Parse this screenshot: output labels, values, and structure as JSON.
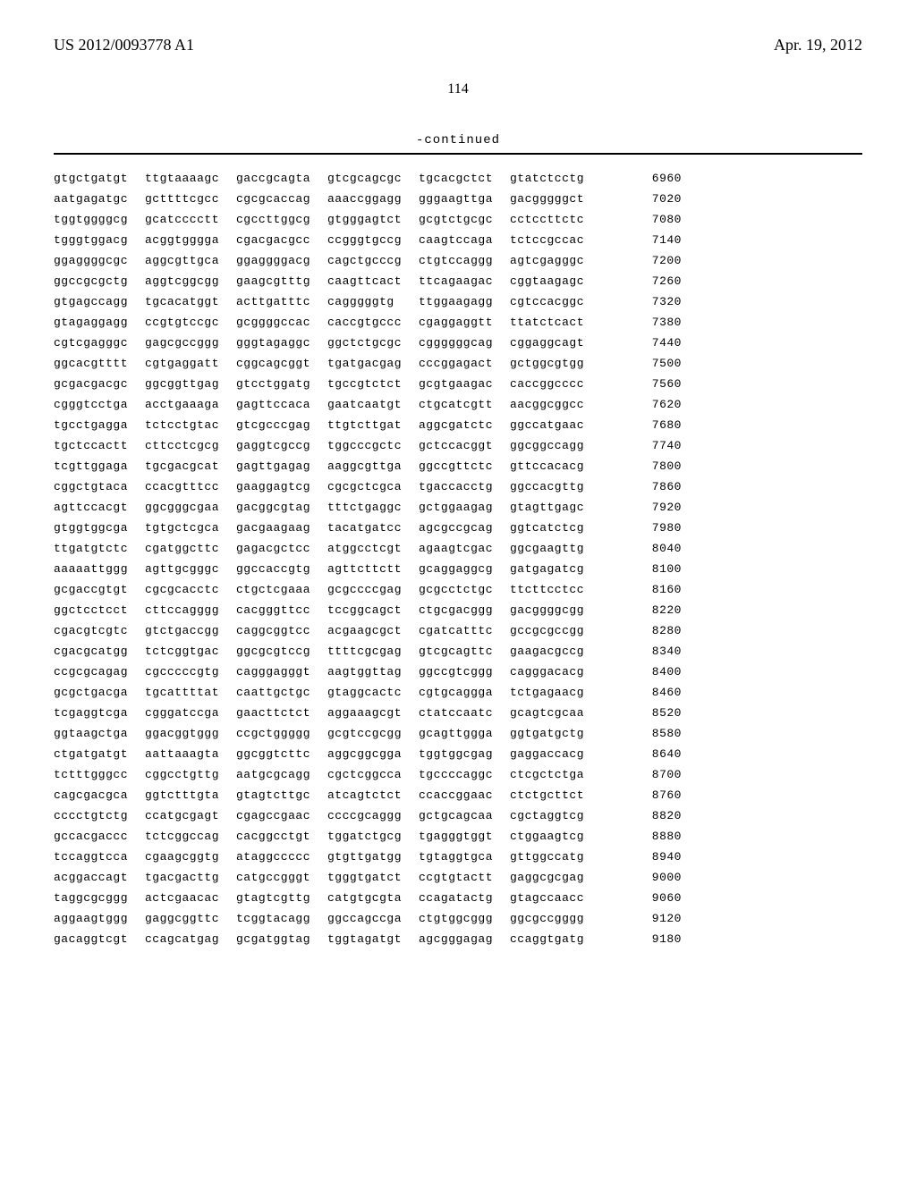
{
  "header": {
    "patent_number": "US 2012/0093778 A1",
    "date": "Apr. 19, 2012"
  },
  "page_number": "114",
  "continued_label": "-continued",
  "sequence": {
    "font_family": "Courier New",
    "font_size_pt": 10,
    "text_color": "#000000",
    "background_color": "#ffffff",
    "rows": [
      {
        "blocks": [
          "gtgctgatgt",
          "ttgtaaaagc",
          "gaccgcagta",
          "gtcgcagcgc",
          "tgcacgctct",
          "gtatctcctg"
        ],
        "pos": "6960"
      },
      {
        "blocks": [
          "aatgagatgc",
          "gcttttcgcc",
          "cgcgcaccag",
          "aaaccggagg",
          "gggaagttga",
          "gacgggggct"
        ],
        "pos": "7020"
      },
      {
        "blocks": [
          "tggtggggcg",
          "gcatcccctt",
          "cgccttggcg",
          "gtgggagtct",
          "gcgtctgcgc",
          "cctccttctc"
        ],
        "pos": "7080"
      },
      {
        "blocks": [
          "tgggtggacg",
          "acggtgggga",
          "cgacgacgcc",
          "ccgggtgccg",
          "caagtccaga",
          "tctccgccac"
        ],
        "pos": "7140"
      },
      {
        "blocks": [
          "ggaggggcgc",
          "aggcgttgca",
          "ggaggggacg",
          "cagctgcccg",
          "ctgtccaggg",
          "agtcgagggc"
        ],
        "pos": "7200"
      },
      {
        "blocks": [
          "ggccgcgctg",
          "aggtcggcgg",
          "gaagcgtttg",
          "caagttcact",
          "ttcagaagac",
          "cggtaagagc"
        ],
        "pos": "7260"
      },
      {
        "blocks": [
          "gtgagccagg",
          "tgcacatggt",
          "acttgatttc",
          "cagggggtg",
          "ttggaagagg",
          "cgtccacggc"
        ],
        "pos": "7320"
      },
      {
        "blocks": [
          "gtagaggagg",
          "ccgtgtccgc",
          "gcggggccac",
          "caccgtgccc",
          "cgaggaggtt",
          "ttatctcact"
        ],
        "pos": "7380"
      },
      {
        "blocks": [
          "cgtcgagggc",
          "gagcgccggg",
          "gggtagaggc",
          "ggctctgcgc",
          "cggggggcag",
          "cggaggcagt"
        ],
        "pos": "7440"
      },
      {
        "blocks": [
          "ggcacgtttt",
          "cgtgaggatt",
          "cggcagcggt",
          "tgatgacgag",
          "cccggagact",
          "gctggcgtgg"
        ],
        "pos": "7500"
      },
      {
        "blocks": [
          "gcgacgacgc",
          "ggcggttgag",
          "gtcctggatg",
          "tgccgtctct",
          "gcgtgaagac",
          "caccggcccc"
        ],
        "pos": "7560"
      },
      {
        "blocks": [
          "cgggtcctga",
          "acctgaaaga",
          "gagttccaca",
          "gaatcaatgt",
          "ctgcatcgtt",
          "aacggcggcc"
        ],
        "pos": "7620"
      },
      {
        "blocks": [
          "tgcctgagga",
          "tctcctgtac",
          "gtcgcccgag",
          "ttgtcttgat",
          "aggcgatctc",
          "ggccatgaac"
        ],
        "pos": "7680"
      },
      {
        "blocks": [
          "tgctccactt",
          "cttcctcgcg",
          "gaggtcgccg",
          "tggcccgctc",
          "gctccacggt",
          "ggcggccagg"
        ],
        "pos": "7740"
      },
      {
        "blocks": [
          "tcgttggaga",
          "tgcgacgcat",
          "gagttgagag",
          "aaggcgttga",
          "ggccgttctc",
          "gttccacacg"
        ],
        "pos": "7800"
      },
      {
        "blocks": [
          "cggctgtaca",
          "ccacgtttcc",
          "gaaggagtcg",
          "cgcgctcgca",
          "tgaccacctg",
          "ggccacgttg"
        ],
        "pos": "7860"
      },
      {
        "blocks": [
          "agttccacgt",
          "ggcgggcgaa",
          "gacggcgtag",
          "tttctgaggc",
          "gctggaagag",
          "gtagttgagc"
        ],
        "pos": "7920"
      },
      {
        "blocks": [
          "gtggtggcga",
          "tgtgctcgca",
          "gacgaagaag",
          "tacatgatcc",
          "agcgccgcag",
          "ggtcatctcg"
        ],
        "pos": "7980"
      },
      {
        "blocks": [
          "ttgatgtctc",
          "cgatggcttc",
          "gagacgctcc",
          "atggcctcgt",
          "agaagtcgac",
          "ggcgaagttg"
        ],
        "pos": "8040"
      },
      {
        "blocks": [
          "aaaaattggg",
          "agttgcgggc",
          "ggccaccgtg",
          "agttcttctt",
          "gcaggaggcg",
          "gatgagatcg"
        ],
        "pos": "8100"
      },
      {
        "blocks": [
          "gcgaccgtgt",
          "cgcgcacctc",
          "ctgctcgaaa",
          "gcgccccgag",
          "gcgcctctgc",
          "ttcttcctcc"
        ],
        "pos": "8160"
      },
      {
        "blocks": [
          "ggctcctcct",
          "cttccagggg",
          "cacgggttcc",
          "tccggcagct",
          "ctgcgacggg",
          "gacggggcgg"
        ],
        "pos": "8220"
      },
      {
        "blocks": [
          "cgacgtcgtc",
          "gtctgaccgg",
          "caggcggtcc",
          "acgaagcgct",
          "cgatcatttc",
          "gccgcgccgg"
        ],
        "pos": "8280"
      },
      {
        "blocks": [
          "cgacgcatgg",
          "tctcggtgac",
          "ggcgcgtccg",
          "ttttcgcgag",
          "gtcgcagttc",
          "gaagacgccg"
        ],
        "pos": "8340"
      },
      {
        "blocks": [
          "ccgcgcagag",
          "cgcccccgtg",
          "cagggagggt",
          "aagtggttag",
          "ggccgtcggg",
          "cagggacacg"
        ],
        "pos": "8400"
      },
      {
        "blocks": [
          "gcgctgacga",
          "tgcattttat",
          "caattgctgc",
          "gtaggcactc",
          "cgtgcaggga",
          "tctgagaacg"
        ],
        "pos": "8460"
      },
      {
        "blocks": [
          "tcgaggtcga",
          "cgggatccga",
          "gaacttctct",
          "aggaaagcgt",
          "ctatccaatc",
          "gcagtcgcaa"
        ],
        "pos": "8520"
      },
      {
        "blocks": [
          "ggtaagctga",
          "ggacggtggg",
          "ccgctggggg",
          "gcgtccgcgg",
          "gcagttggga",
          "ggtgatgctg"
        ],
        "pos": "8580"
      },
      {
        "blocks": [
          "ctgatgatgt",
          "aattaaagta",
          "ggcggtcttc",
          "aggcggcgga",
          "tggtggcgag",
          "gaggaccacg"
        ],
        "pos": "8640"
      },
      {
        "blocks": [
          "tctttgggcc",
          "cggcctgttg",
          "aatgcgcagg",
          "cgctcggcca",
          "tgccccaggc",
          "ctcgctctga"
        ],
        "pos": "8700"
      },
      {
        "blocks": [
          "cagcgacgca",
          "ggtctttgta",
          "gtagtcttgc",
          "atcagtctct",
          "ccaccggaac",
          "ctctgcttct"
        ],
        "pos": "8760"
      },
      {
        "blocks": [
          "cccctgtctg",
          "ccatgcgagt",
          "cgagccgaac",
          "ccccgcaggg",
          "gctgcagcaa",
          "cgctaggtcg"
        ],
        "pos": "8820"
      },
      {
        "blocks": [
          "gccacgaccc",
          "tctcggccag",
          "cacggcctgt",
          "tggatctgcg",
          "tgagggtggt",
          "ctggaagtcg"
        ],
        "pos": "8880"
      },
      {
        "blocks": [
          "tccaggtcca",
          "cgaagcggtg",
          "ataggccccc",
          "gtgttgatgg",
          "tgtaggtgca",
          "gttggccatg"
        ],
        "pos": "8940"
      },
      {
        "blocks": [
          "acggaccagt",
          "tgacgacttg",
          "catgccgggt",
          "tgggtgatct",
          "ccgtgtactt",
          "gaggcgcgag"
        ],
        "pos": "9000"
      },
      {
        "blocks": [
          "taggcgcggg",
          "actcgaacac",
          "gtagtcgttg",
          "catgtgcgta",
          "ccagatactg",
          "gtagccaacc"
        ],
        "pos": "9060"
      },
      {
        "blocks": [
          "aggaagtggg",
          "gaggcggttc",
          "tcggtacagg",
          "ggccagccga",
          "ctgtggcggg",
          "ggcgccgggg"
        ],
        "pos": "9120"
      },
      {
        "blocks": [
          "gacaggtcgt",
          "ccagcatgag",
          "gcgatggtag",
          "tggtagatgt",
          "agcgggagag",
          "ccaggtgatg"
        ],
        "pos": "9180"
      }
    ]
  }
}
